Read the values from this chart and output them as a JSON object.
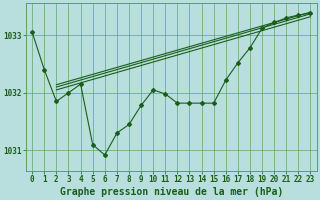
{
  "title": "Graphe pression niveau de la mer (hPa)",
  "background_color": "#b8dede",
  "grid_color": "#4a9a4a",
  "line_color": "#1a5e1a",
  "xlim": [
    -0.5,
    23.5
  ],
  "ylim": [
    1030.65,
    1033.55
  ],
  "yticks": [
    1031,
    1032,
    1033
  ],
  "xticks": [
    0,
    1,
    2,
    3,
    4,
    5,
    6,
    7,
    8,
    9,
    10,
    11,
    12,
    13,
    14,
    15,
    16,
    17,
    18,
    19,
    20,
    21,
    22,
    23
  ],
  "main_x": [
    0,
    1,
    2,
    3,
    4,
    5,
    6,
    7,
    8,
    9,
    10,
    11,
    12,
    13,
    14,
    15,
    16,
    17,
    18,
    19,
    20,
    21,
    22,
    23
  ],
  "main_y": [
    1033.05,
    1032.4,
    1031.85,
    1032.0,
    1032.15,
    1031.1,
    1030.92,
    1031.3,
    1031.45,
    1031.78,
    1032.05,
    1031.98,
    1031.82,
    1031.82,
    1031.82,
    1031.82,
    1032.22,
    1032.52,
    1032.78,
    1033.12,
    1033.22,
    1033.3,
    1033.35,
    1033.38
  ],
  "trend1_x": [
    2.0,
    23.0
  ],
  "trend1_y": [
    1032.05,
    1033.32
  ],
  "trend2_x": [
    2.0,
    23.0
  ],
  "trend2_y": [
    1032.1,
    1033.37
  ],
  "trend3_x": [
    2.0,
    23.0
  ],
  "trend3_y": [
    1032.14,
    1033.4
  ],
  "tickfontsize": 5.5,
  "label_fontsize": 7.0
}
